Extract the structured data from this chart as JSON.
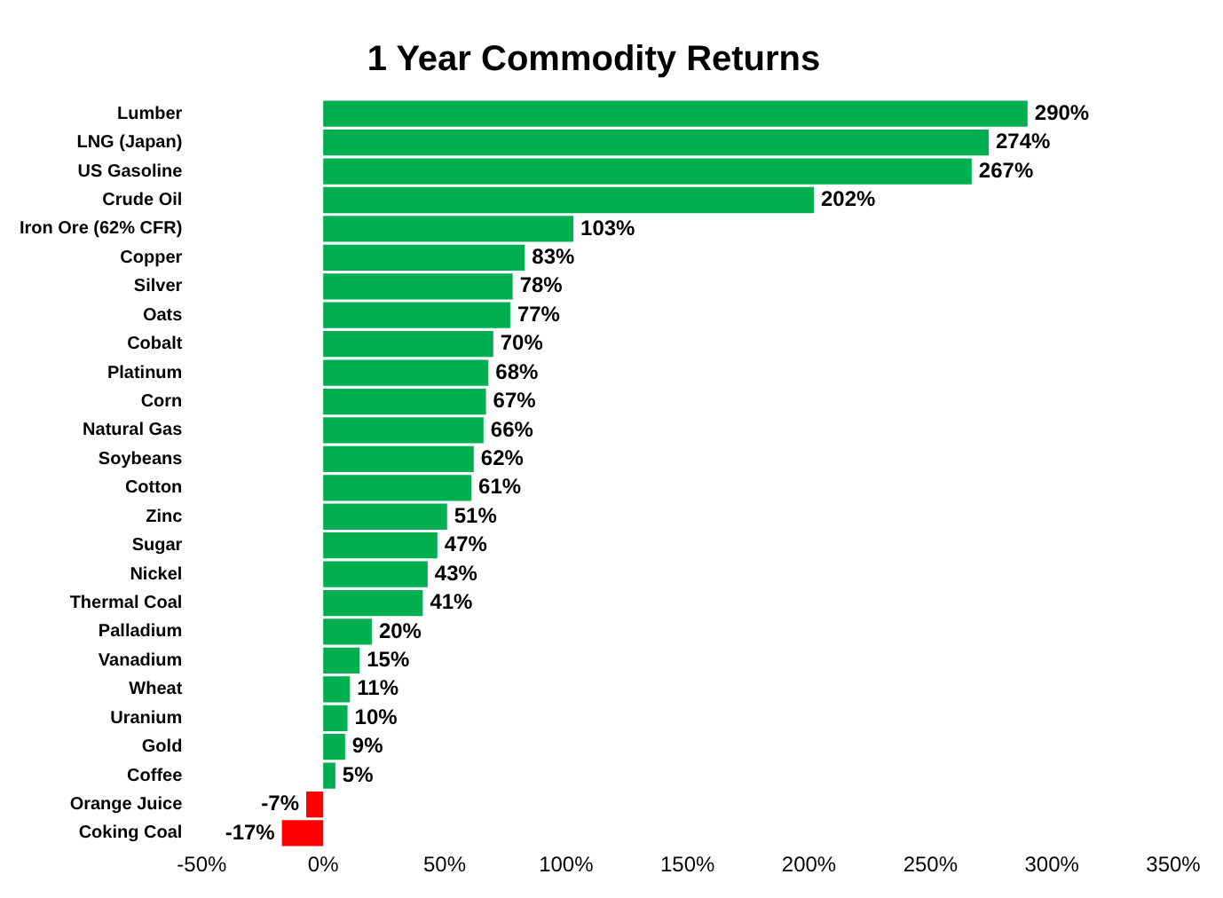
{
  "chart_data": {
    "type": "bar",
    "orientation": "horizontal",
    "title": "1 Year Commodity Returns",
    "categories": [
      "Lumber",
      "LNG (Japan)",
      "US Gasoline",
      "Crude Oil",
      "Iron Ore (62% CFR)",
      "Copper",
      "Silver",
      "Oats",
      "Cobalt",
      "Platinum",
      "Corn",
      "Natural Gas",
      "Soybeans",
      "Cotton",
      "Zinc",
      "Sugar",
      "Nickel",
      "Thermal Coal",
      "Palladium",
      "Vanadium",
      "Wheat",
      "Uranium",
      "Gold",
      "Coffee",
      "Orange Juice",
      "Coking Coal"
    ],
    "values": [
      290,
      274,
      267,
      202,
      103,
      83,
      78,
      77,
      70,
      68,
      67,
      66,
      62,
      61,
      51,
      47,
      43,
      41,
      20,
      15,
      11,
      10,
      9,
      5,
      -7,
      -17
    ],
    "value_labels": [
      "290%",
      "274%",
      "267%",
      "202%",
      "103%",
      "83%",
      "78%",
      "77%",
      "70%",
      "68%",
      "67%",
      "66%",
      "62%",
      "61%",
      "51%",
      "47%",
      "43%",
      "41%",
      "20%",
      "15%",
      "11%",
      "10%",
      "9%",
      "5%",
      "-7%",
      "-17%"
    ],
    "colors": [
      "#00b050",
      "#00b050",
      "#00b050",
      "#00b050",
      "#00b050",
      "#00b050",
      "#00b050",
      "#00b050",
      "#00b050",
      "#00b050",
      "#00b050",
      "#00b050",
      "#00b050",
      "#00b050",
      "#00b050",
      "#00b050",
      "#00b050",
      "#00b050",
      "#00b050",
      "#00b050",
      "#00b050",
      "#00b050",
      "#00b050",
      "#00b050",
      "#ff0000",
      "#ff0000"
    ],
    "xlim": [
      -50,
      350
    ],
    "xticks": [
      {
        "value": -50,
        "label": "-50%"
      },
      {
        "value": 0,
        "label": "0%"
      },
      {
        "value": 50,
        "label": "50%"
      },
      {
        "value": 100,
        "label": "100%"
      },
      {
        "value": 150,
        "label": "150%"
      },
      {
        "value": 200,
        "label": "200%"
      },
      {
        "value": 250,
        "label": "250%"
      },
      {
        "value": 300,
        "label": "300%"
      },
      {
        "value": 350,
        "label": "350%"
      }
    ],
    "grid": false,
    "legend": false
  }
}
